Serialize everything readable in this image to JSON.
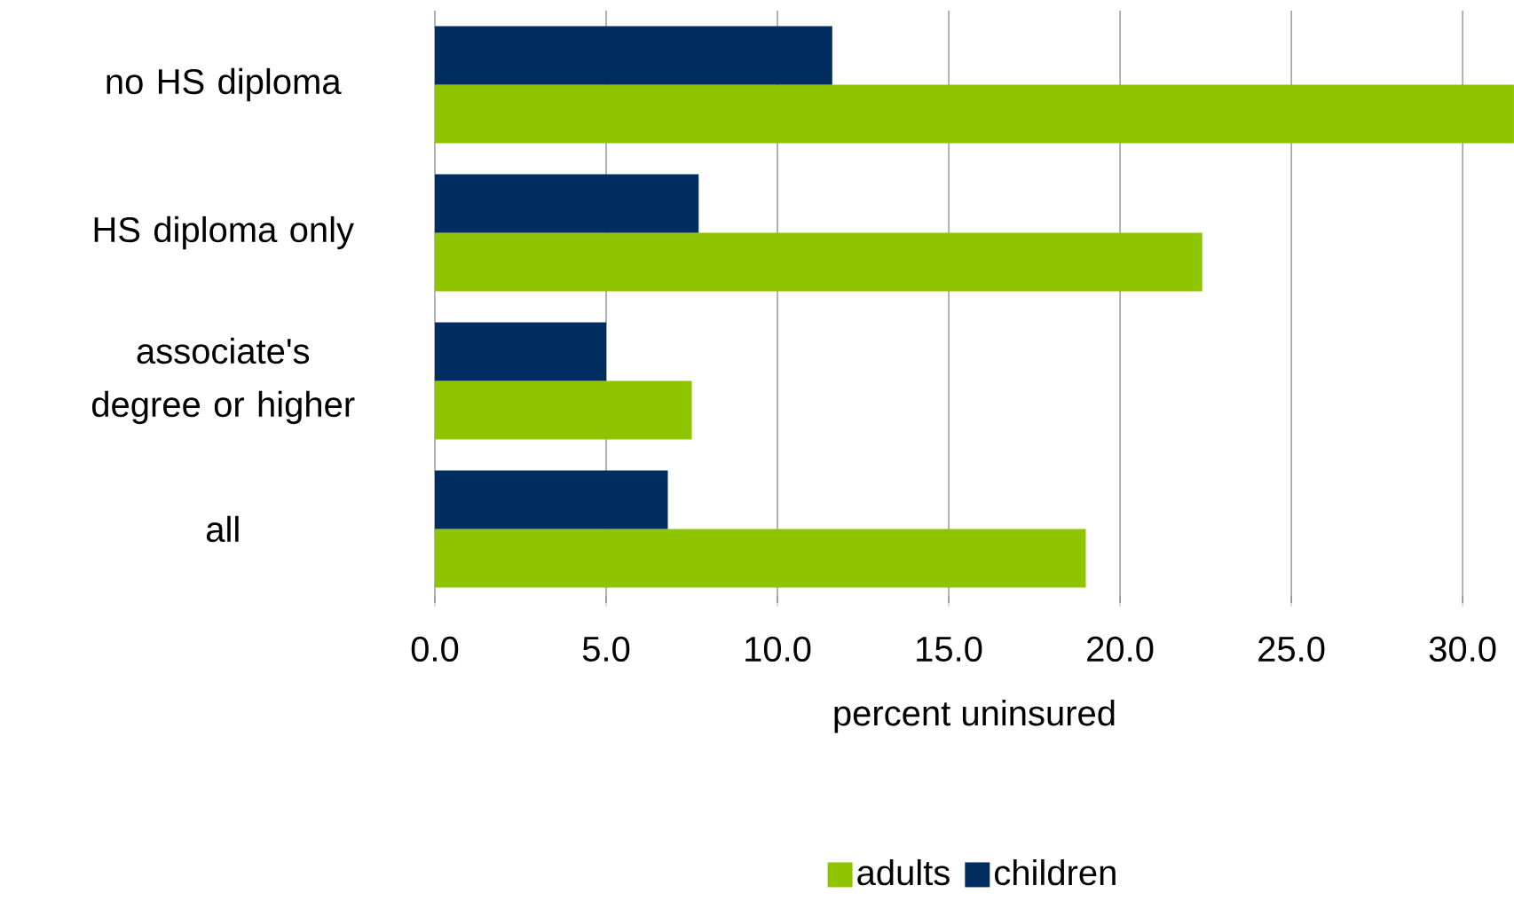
{
  "chart_data": {
    "type": "bar",
    "orientation": "horizontal",
    "xlabel": "percent uninsured",
    "categories": [
      "no HS diploma",
      "HS diploma only",
      "associate's degree or higher",
      "all"
    ],
    "series": [
      {
        "name": "adults",
        "color": "#8fc400",
        "values": [
          31.5,
          22.4,
          7.5,
          19.0
        ]
      },
      {
        "name": "children",
        "color": "#002d60",
        "values": [
          11.6,
          7.7,
          5.0,
          6.8
        ]
      }
    ],
    "xlim": [
      0,
      31.5
    ],
    "xticks": [
      {
        "value": 0,
        "label": "0.0"
      },
      {
        "value": 5,
        "label": "5.0"
      },
      {
        "value": 10,
        "label": "10.0"
      },
      {
        "value": 15,
        "label": "15.0"
      },
      {
        "value": 20,
        "label": "20.0"
      },
      {
        "value": 25,
        "label": "25.0"
      },
      {
        "value": 30,
        "label": "30.0"
      }
    ],
    "grid": "x",
    "legend": "bottom"
  }
}
